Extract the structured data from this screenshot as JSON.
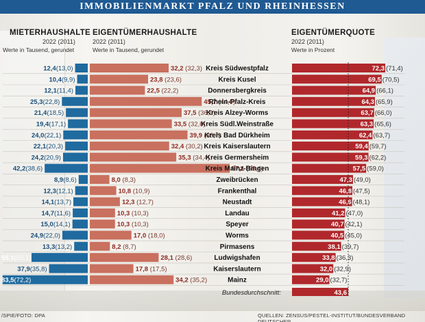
{
  "title": "IMMOBILIENMARKT PFALZ UND RHEINHESSEN",
  "headers": {
    "mieter": {
      "title": "MIETERHAUSHALTE",
      "years": "2022 (2011)",
      "unit": "Werte in Tausend, gerundet"
    },
    "eigentuemer": {
      "title": "EIGENTÜMERHAUSHALTE",
      "years": "2022 (2011)",
      "unit": "Werte in Tausend, gerundet"
    },
    "quote": {
      "title": "EIGENTÜMERQUOTE",
      "years": "2022 (2011)",
      "unit": "Werte in Prozent"
    }
  },
  "footer": {
    "left": "/SPIE/FOTO: DPA",
    "right": "QUELLEN: ZENSUS/PESTEL-INSTITUT/BUNDESVERBAND DEUTSCHER"
  },
  "colors": {
    "mieter": "#1f6a9f",
    "eigentuemer": "#c9705f",
    "quote": "#b0282c",
    "average": "#b0282c",
    "title_bar": "#1f5a93"
  },
  "chart_data": {
    "type": "bar",
    "categories": [
      "Kreis Südwestpfalz",
      "Kreis Kusel",
      "Donnersbergkreis",
      "Rhein-Pfalz-Kreis",
      "Kreis Alzey-Worms",
      "Kreis Südl.Weinstraße",
      "Kreis Bad Dürkheim",
      "Kreis Kaiserslautern",
      "Kreis Germersheim",
      "Kreis Mainz-Bingen",
      "Zweibrücken",
      "Frankenthal",
      "Neustadt",
      "Landau",
      "Speyer",
      "Worms",
      "Pirmasens",
      "Ludwigshafen",
      "Kaiserslautern",
      "Mainz"
    ],
    "series": [
      {
        "name": "MIETERHAUSHALTE",
        "values": [
          12.4,
          10.4,
          12.1,
          25.3,
          21.4,
          19.4,
          24.0,
          22.1,
          24.2,
          42.2,
          8.9,
          12.3,
          14.1,
          14.7,
          15.0,
          24.9,
          13.3,
          55.1,
          37.9,
          83.5
        ],
        "labels": [
          "12,4",
          "10,4",
          "12,1",
          "25,3",
          "21,4",
          "19,4",
          "24,0",
          "22,1",
          "24,2",
          "42,2",
          "8,9",
          "12,3",
          "14,1",
          "14,7",
          "15,0",
          "24,9",
          "13,3",
          "55,1",
          "37,9",
          "83,5"
        ],
        "labels_2011": [
          "(13,0)",
          "(9,9)",
          "(11,4)",
          "(22,8)",
          "(18,5)",
          "(17,1)",
          "(22,1)",
          "(20,3)",
          "(20,9)",
          "(38,6)",
          "(8,6)",
          "(12,1)",
          "(13,7)",
          "(11,6)",
          "(14,1)",
          "(22,0)",
          "(13,2)",
          "(50,1)",
          "(35,8)",
          "(72,2)"
        ]
      },
      {
        "name": "EIGENTÜMERHAUSHALTE",
        "values": [
          32.2,
          23.8,
          22.5,
          45.7,
          37.5,
          33.5,
          39.9,
          32.4,
          35.3,
          57.1,
          8.0,
          10.8,
          12.3,
          10.3,
          10.3,
          17.0,
          8.2,
          28.1,
          17.8,
          34.2
        ],
        "labels": [
          "32,2",
          "23,8",
          "22,5",
          "45,7",
          "37,5",
          "33,5",
          "39,9",
          "32,4",
          "35,3",
          "57,1",
          "8,0",
          "10,8",
          "12,3",
          "10,3",
          "10,3",
          "17,0",
          "8,2",
          "28,1",
          "17,8",
          "34,2"
        ],
        "labels_2011": [
          "(32,3)",
          "(23,6)",
          "(22,2)",
          "(44,0)",
          "(36,0)",
          "(32,6)",
          "(38,7)",
          "(30,2)",
          "(34,4)",
          "(55,4)",
          "(8,3)",
          "(10,9)",
          "(12,7)",
          "(10,3)",
          "(10,3)",
          "(18,0)",
          "(8,7)",
          "(28,6)",
          "(17,5)",
          "(35,2)"
        ]
      },
      {
        "name": "EIGENTÜMERQUOTE",
        "values": [
          72.3,
          69.5,
          64.9,
          64.3,
          63.7,
          63.3,
          62.4,
          59.4,
          59.3,
          57.5,
          47.3,
          46.8,
          46.6,
          41.2,
          40.7,
          40.5,
          38.1,
          33.8,
          32.0,
          29.0
        ],
        "labels": [
          "72,3",
          "69,5",
          "64,9",
          "64,3",
          "63,7",
          "63,3",
          "62,4",
          "59,4",
          "59,3",
          "57,5",
          "47,3",
          "46,8",
          "46,6",
          "41,2",
          "40,7",
          "40,5",
          "38,1",
          "33,8",
          "32,0",
          "29,0"
        ],
        "labels_2011": [
          "(71,4)",
          "(70,5)",
          "(66,1)",
          "(65,9)",
          "(66,0)",
          "(65,6)",
          "(63,7)",
          "(59,7)",
          "(62,2)",
          "(59,0)",
          "(49,0)",
          "(47,5)",
          "(48,1)",
          "(47,0)",
          "(42,1)",
          "(45,0)",
          "(39,7)",
          "(36,3)",
          "(32,9)",
          "(32,7)"
        ]
      }
    ],
    "average": {
      "label": "Bundesdurchschnitt:",
      "value": 43.6,
      "value_label": "43,6"
    }
  }
}
